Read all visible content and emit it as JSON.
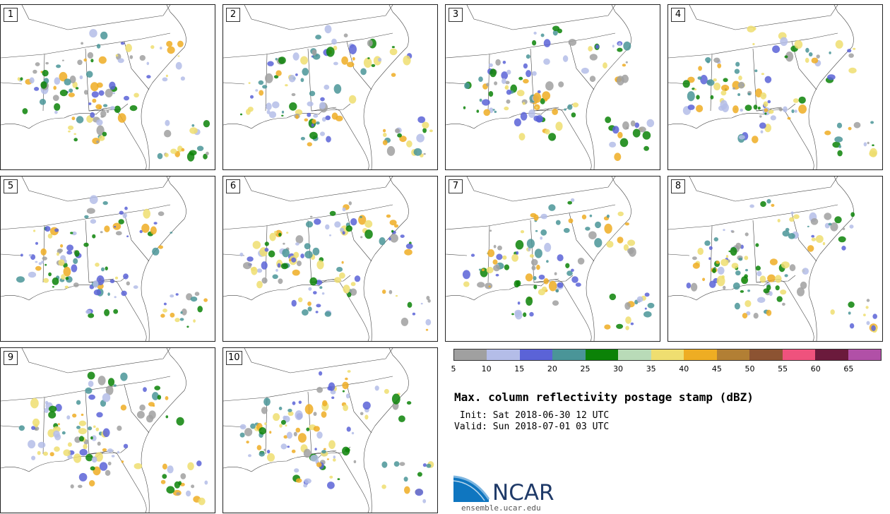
{
  "panels": [
    {
      "label": "1"
    },
    {
      "label": "2"
    },
    {
      "label": "3"
    },
    {
      "label": "4"
    },
    {
      "label": "5"
    },
    {
      "label": "6"
    },
    {
      "label": "7"
    },
    {
      "label": "8"
    },
    {
      "label": "9"
    },
    {
      "label": "10"
    }
  ],
  "colorbar": {
    "colors": [
      "#a0a0a0",
      "#b4bde8",
      "#5b63d7",
      "#4a9598",
      "#0b8207",
      "#b9dbb8",
      "#efde70",
      "#eead23",
      "#b27f34",
      "#8c5332",
      "#ef527d",
      "#6b1a3c",
      "#b150a7"
    ],
    "ticks": [
      "5",
      "10",
      "15",
      "20",
      "25",
      "30",
      "35",
      "40",
      "45",
      "50",
      "55",
      "60",
      "65"
    ]
  },
  "title": "Max. column reflectivity postage stamp (dBZ)",
  "init_text": " Init: Sat 2018-06-30 12 UTC",
  "valid_text": "Valid: Sun 2018-07-01 03 UTC",
  "logo": {
    "name": "NCAR",
    "site": "ensemble.ucar.edu"
  }
}
